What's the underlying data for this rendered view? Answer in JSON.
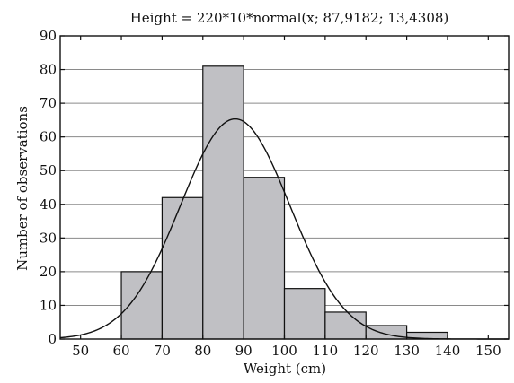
{
  "chart_data": {
    "type": "bar",
    "title": "Height = 220*10*normal(x; 87,9182; 13,4308)",
    "xlabel": "Weight (cm)",
    "ylabel": "Number of observations",
    "xlim": [
      45,
      155
    ],
    "ylim": [
      0,
      90
    ],
    "x_ticks": [
      50,
      60,
      70,
      80,
      90,
      100,
      110,
      120,
      130,
      140,
      150
    ],
    "y_ticks": [
      0,
      10,
      20,
      30,
      40,
      50,
      60,
      70,
      80,
      90
    ],
    "grid": "horizontal",
    "bins": [
      {
        "from": 60,
        "to": 70,
        "count": 20
      },
      {
        "from": 70,
        "to": 80,
        "count": 42
      },
      {
        "from": 80,
        "to": 90,
        "count": 81
      },
      {
        "from": 90,
        "to": 100,
        "count": 48
      },
      {
        "from": 100,
        "to": 110,
        "count": 15
      },
      {
        "from": 110,
        "to": 120,
        "count": 8
      },
      {
        "from": 120,
        "to": 130,
        "count": 4
      },
      {
        "from": 130,
        "to": 140,
        "count": 2
      }
    ],
    "fit": {
      "distribution": "normal",
      "n": 220,
      "bin_width": 10,
      "mean": 87.9182,
      "sd": 13.4308
    },
    "colors": {
      "bar_fill": "#c0c0c4",
      "bar_stroke": "#111111",
      "curve": "#111111",
      "grid": "#8a8a8a"
    }
  }
}
